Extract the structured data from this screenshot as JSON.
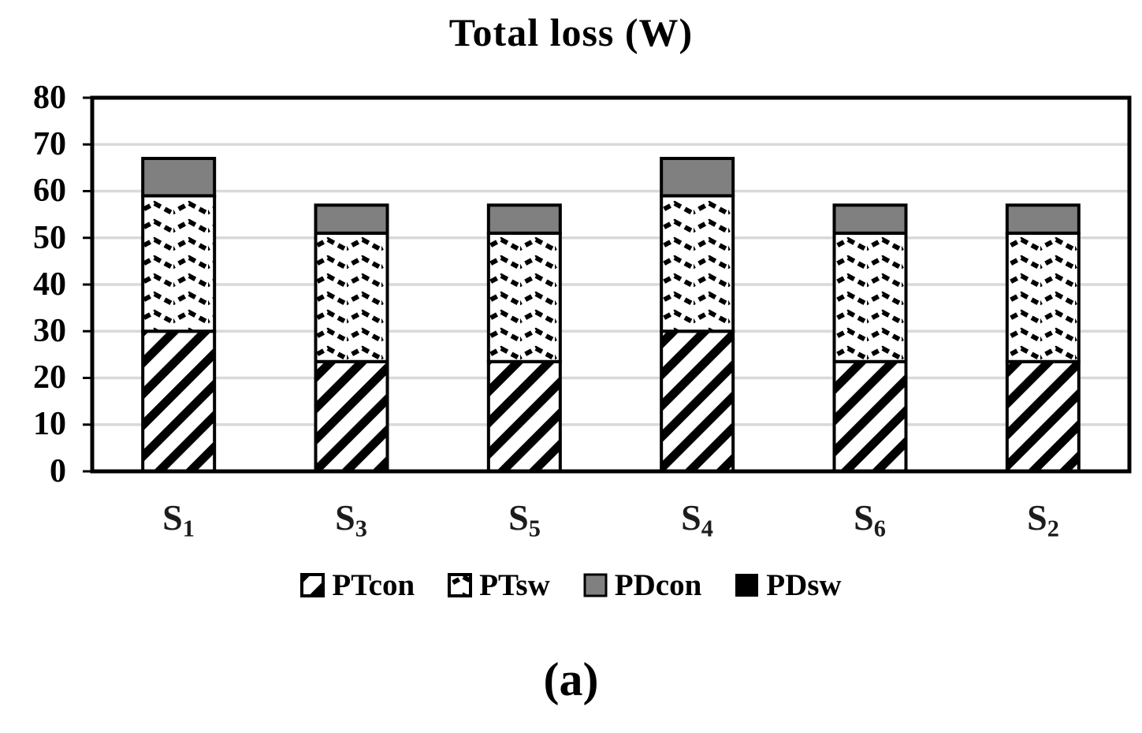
{
  "title": "Total loss (W)",
  "caption": "(a)",
  "chart_data": {
    "type": "bar",
    "stacked": true,
    "title": "Total loss (W)",
    "xlabel": "",
    "ylabel": "",
    "ylim": [
      0,
      80
    ],
    "ytick_interval": 10,
    "yticks": [
      0,
      10,
      20,
      30,
      40,
      50,
      60,
      70,
      80
    ],
    "ytick_labels": [
      "80",
      "70",
      "60",
      "50",
      "40",
      "30",
      "20",
      "10",
      "0"
    ],
    "grid": true,
    "legend_position": "bottom",
    "categories": [
      "S1",
      "S3",
      "S5",
      "S4",
      "S6",
      "S2"
    ],
    "category_labels": [
      {
        "base": "S",
        "sub": "1"
      },
      {
        "base": "S",
        "sub": "3"
      },
      {
        "base": "S",
        "sub": "5"
      },
      {
        "base": "S",
        "sub": "4"
      },
      {
        "base": "S",
        "sub": "6"
      },
      {
        "base": "S",
        "sub": "2"
      }
    ],
    "series": [
      {
        "name": "PTcon",
        "pattern": "diagonal-stripes",
        "color": "#000000",
        "values": [
          30,
          23.5,
          23.5,
          30,
          23.5,
          23.5
        ]
      },
      {
        "name": "PTsw",
        "pattern": "zigzag-waves",
        "color": "#000000",
        "values": [
          29,
          27.5,
          27.5,
          29,
          27.5,
          27.5
        ]
      },
      {
        "name": "PDcon",
        "pattern": "solid-gray",
        "color": "#808080",
        "values": [
          8,
          6,
          6,
          8,
          6,
          6
        ]
      },
      {
        "name": "PDsw",
        "pattern": "solid-black",
        "color": "#000000",
        "values": [
          0,
          0,
          0,
          0,
          0,
          0
        ]
      }
    ],
    "stack_totals": [
      67,
      57,
      57,
      67,
      57,
      57
    ],
    "colors": {
      "gridline": "#d9d9d9",
      "bar_border": "#000000",
      "axis": "#000000",
      "pdcon_fill": "#808080",
      "pdsw_fill": "#000000",
      "background": "#ffffff"
    }
  },
  "legend": {
    "items": [
      {
        "label": "PTcon"
      },
      {
        "label": "PTsw"
      },
      {
        "label": "PDcon"
      },
      {
        "label": "PDsw"
      }
    ]
  }
}
